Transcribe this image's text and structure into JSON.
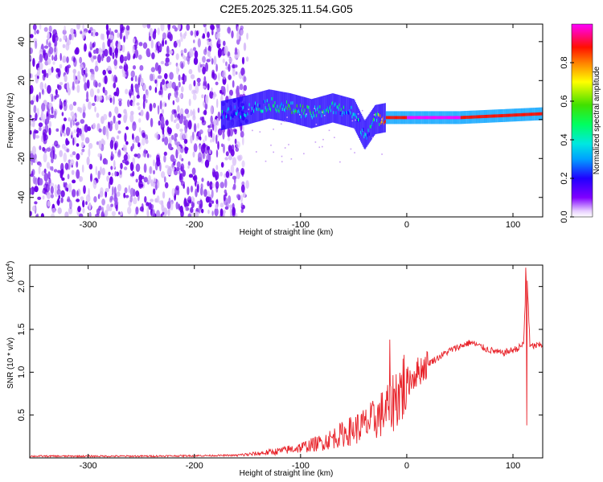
{
  "title": "C2E5.2025.325.11.54.G05",
  "chart_data": [
    {
      "type": "heatmap",
      "xlabel": "Height of straight line (km)",
      "ylabel": "Frequency (Hz)",
      "xlim": [
        -355,
        128
      ],
      "ylim": [
        -50,
        49
      ],
      "xticks": [
        -300,
        -200,
        -100,
        0,
        100
      ],
      "yticks": [
        -40,
        -20,
        0,
        20,
        40
      ],
      "xtick_labels": [
        "-300",
        "-200",
        "-100",
        "0",
        "100"
      ],
      "ytick_labels": [
        "-40",
        "-20",
        "0",
        "20",
        "40"
      ],
      "noise_region_x": [
        -355,
        -150
      ],
      "signal": [
        {
          "x": -175,
          "f": 2,
          "amp": 0.35
        },
        {
          "x": -150,
          "f": 5,
          "amp": 0.3
        },
        {
          "x": -130,
          "f": 8,
          "amp": 0.45
        },
        {
          "x": -110,
          "f": 6,
          "amp": 0.5
        },
        {
          "x": -90,
          "f": 3,
          "amp": 0.5
        },
        {
          "x": -70,
          "f": 6,
          "amp": 0.4
        },
        {
          "x": -50,
          "f": 3,
          "amp": 0.4
        },
        {
          "x": -40,
          "f": -8,
          "amp": 0.3
        },
        {
          "x": -30,
          "f": 0,
          "amp": 0.5
        },
        {
          "x": -20,
          "f": 1,
          "amp": 0.9
        },
        {
          "x": 0,
          "f": 1,
          "amp": 1.0
        },
        {
          "x": 50,
          "f": 1,
          "amp": 1.0
        },
        {
          "x": 90,
          "f": 2,
          "amp": 0.95
        },
        {
          "x": 128,
          "f": 3,
          "amp": 0.9
        }
      ],
      "colorbar": {
        "label": "Normalized spectral amplitude",
        "range": [
          0,
          1
        ],
        "ticks": [
          0.0,
          0.2,
          0.4,
          0.6,
          0.8
        ],
        "tick_labels": [
          "0.0",
          "0.2",
          "0.4",
          "0.6",
          "0.8"
        ],
        "colors": [
          "#ffffff",
          "#8000ff",
          "#0000ff",
          "#00c8ff",
          "#00ff80",
          "#00e000",
          "#ffff00",
          "#ff8000",
          "#ff0000",
          "#ff00ff"
        ]
      }
    },
    {
      "type": "line",
      "xlabel": "Height of straight line (km)",
      "ylabel": "SNR (10 * v/v)",
      "y_multiplier": "(x10^4)",
      "xlim": [
        -355,
        128
      ],
      "ylim": [
        0,
        2.25
      ],
      "xticks": [
        -300,
        -200,
        -100,
        0,
        100
      ],
      "yticks": [
        0.5,
        1.0,
        1.5,
        2.0
      ],
      "xtick_labels": [
        "-300",
        "-200",
        "-100",
        "0",
        "100"
      ],
      "ytick_labels": [
        "0.5",
        "1.0",
        "1.5",
        "2.0"
      ],
      "series": [
        {
          "color": "#e8232a",
          "x": [
            -355,
            -250,
            -160,
            -140,
            -120,
            -100,
            -80,
            -60,
            -40,
            -30,
            -20,
            -15,
            -10,
            0,
            10,
            20,
            40,
            60,
            75,
            90,
            105,
            110,
            113,
            116,
            128
          ],
          "y": [
            0.02,
            0.02,
            0.03,
            0.05,
            0.08,
            0.12,
            0.18,
            0.28,
            0.38,
            0.45,
            0.55,
            0.62,
            0.72,
            0.88,
            1.0,
            1.1,
            1.25,
            1.35,
            1.27,
            1.22,
            1.28,
            1.33,
            2.22,
            1.3,
            1.32
          ]
        }
      ],
      "spikes": [
        {
          "x": -16,
          "y": 1.38
        },
        {
          "x": 112,
          "y": 2.22
        },
        {
          "x": 113,
          "y": 0.38
        }
      ]
    }
  ]
}
